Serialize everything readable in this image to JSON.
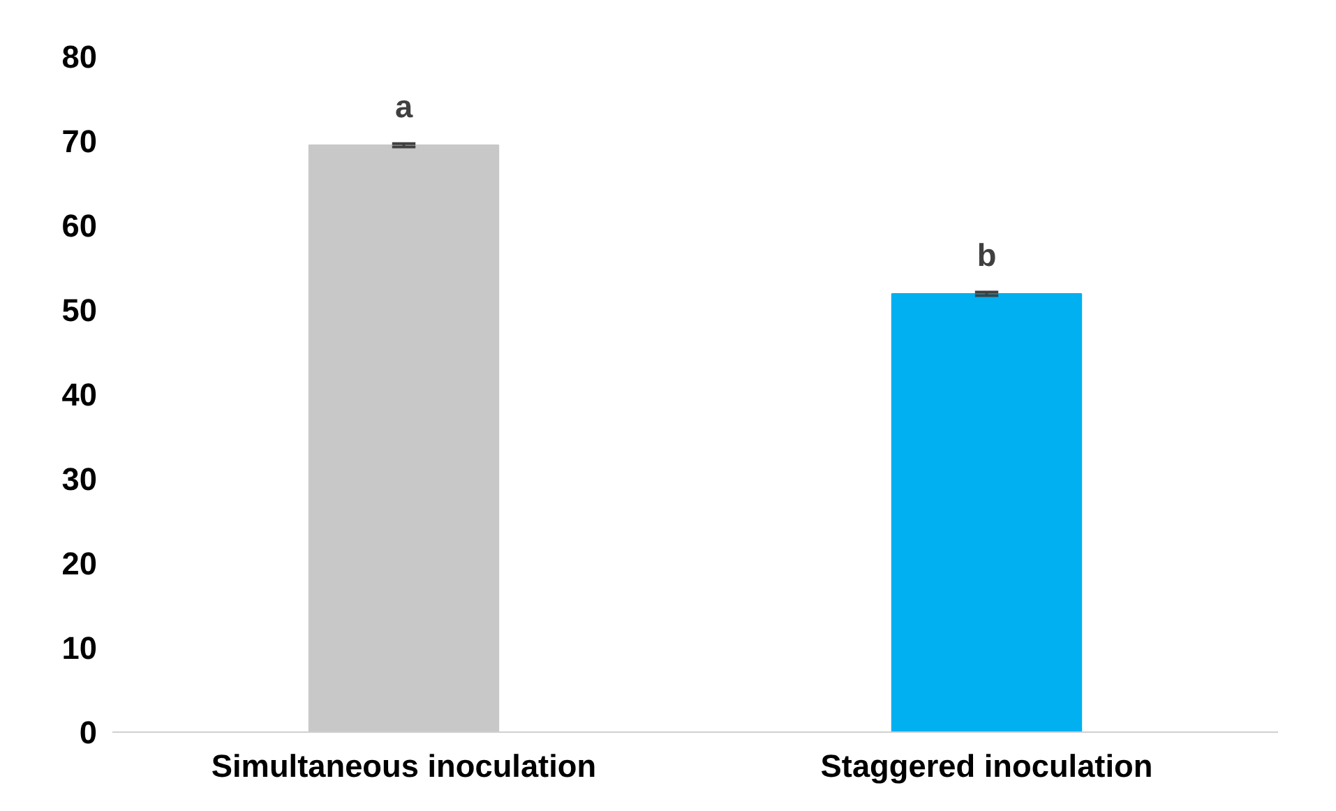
{
  "chart_data": {
    "type": "bar",
    "categories": [
      "Simultaneous inoculation",
      "Staggered inoculation"
    ],
    "values": [
      69.5,
      51.9
    ],
    "colors": [
      "#c8c8c8",
      "#00b0f0"
    ],
    "errors": [
      0.2,
      0.2
    ],
    "ylim": [
      0,
      80
    ],
    "yticks": [
      0,
      10,
      20,
      30,
      40,
      50,
      60,
      70,
      80
    ],
    "grid": false,
    "annotations": [
      "a",
      "b"
    ]
  }
}
